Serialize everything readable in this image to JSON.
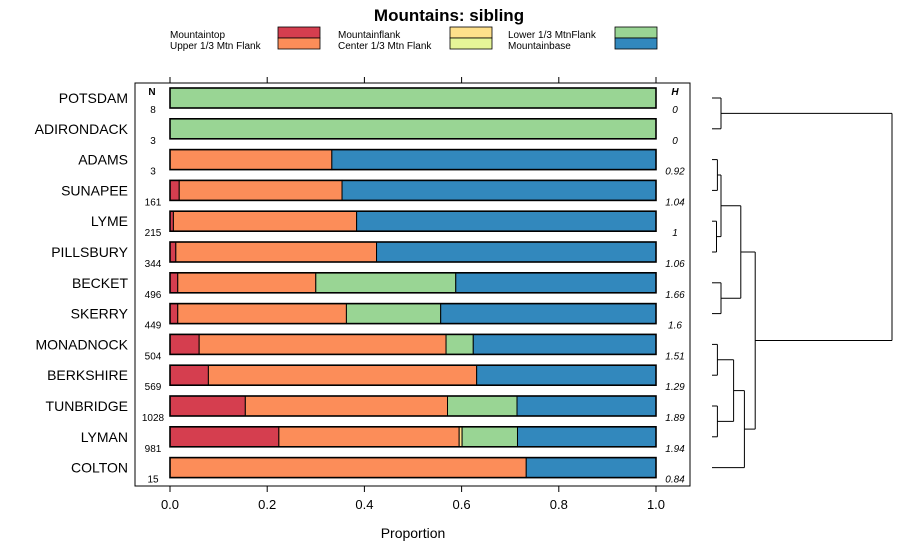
{
  "chart_data": {
    "type": "bar",
    "orientation": "horizontal",
    "stacked": true,
    "title": "Mountains: sibling",
    "xlabel": "Proportion",
    "xlim": [
      0,
      1
    ],
    "xticks": [
      "0.0",
      "0.2",
      "0.4",
      "0.6",
      "0.8",
      "1.0"
    ],
    "n_header": "N",
    "h_header": "H",
    "legend": [
      {
        "name": "Mountaintop",
        "color": "#d53e4f"
      },
      {
        "name": "Upper 1/3 Mtn Flank",
        "color": "#fc8d59"
      },
      {
        "name": "Mountainflank",
        "color": "#fee08b"
      },
      {
        "name": "Center 1/3 Mtn Flank",
        "color": "#e6f598"
      },
      {
        "name": "Lower 1/3 MtnFlank",
        "color": "#99d594"
      },
      {
        "name": "Mountainbase",
        "color": "#3288bd"
      }
    ],
    "categories": [
      "POTSDAM",
      "ADIRONDACK",
      "ADAMS",
      "SUNAPEE",
      "LYME",
      "PILLSBURY",
      "BECKET",
      "SKERRY",
      "MONADNOCK",
      "BERKSHIRE",
      "TUNBRIDGE",
      "LYMAN",
      "COLTON"
    ],
    "n": [
      "8",
      "3",
      "3",
      "161",
      "215",
      "344",
      "496",
      "449",
      "504",
      "569",
      "1028",
      "981",
      "15"
    ],
    "h": [
      "0",
      "0",
      "0.92",
      "1.04",
      "1",
      "1.06",
      "1.66",
      "1.6",
      "1.51",
      "1.29",
      "1.89",
      "1.94",
      "0.84"
    ],
    "series": [
      {
        "name": "Mountaintop",
        "values": [
          0,
          0,
          0,
          0.019,
          0.007,
          0.012,
          0.016,
          0.016,
          0.06,
          0.079,
          0.155,
          0.224,
          0
        ]
      },
      {
        "name": "Upper 1/3 Mtn Flank",
        "values": [
          0,
          0,
          0.333,
          0.335,
          0.377,
          0.413,
          0.284,
          0.347,
          0.508,
          0.552,
          0.416,
          0.371,
          0.733
        ]
      },
      {
        "name": "Mountainflank",
        "values": [
          0,
          0,
          0,
          0,
          0,
          0,
          0,
          0,
          0,
          0,
          0,
          0.006,
          0
        ]
      },
      {
        "name": "Center 1/3 Mtn Flank",
        "values": [
          0,
          0,
          0,
          0,
          0,
          0,
          0,
          0,
          0,
          0,
          0,
          0,
          0
        ]
      },
      {
        "name": "Lower 1/3 MtnFlank",
        "values": [
          1,
          1,
          0,
          0,
          0,
          0,
          0.288,
          0.194,
          0.056,
          0,
          0.143,
          0.114,
          0
        ]
      },
      {
        "name": "Mountainbase",
        "values": [
          0,
          0,
          0.667,
          0.646,
          0.616,
          0.575,
          0.412,
          0.443,
          0.376,
          0.369,
          0.286,
          0.285,
          0.267
        ]
      }
    ],
    "dendrogram": {
      "type": "hierarchical clustering",
      "leaf_order": [
        "POTSDAM",
        "ADIRONDACK",
        "ADAMS",
        "SUNAPEE",
        "LYME",
        "PILLSBURY",
        "BECKET",
        "SKERRY",
        "MONADNOCK",
        "BERKSHIRE",
        "TUNBRIDGE",
        "LYMAN",
        "COLTON"
      ],
      "merges": [
        {
          "a": 0,
          "b": 1,
          "height": 0.05
        },
        {
          "a": 2,
          "b": 3,
          "height": 0.03
        },
        {
          "a": 4,
          "b": 5,
          "height": 0.025
        },
        {
          "a": "c1",
          "b": "c2",
          "height": 0.05
        },
        {
          "a": 6,
          "b": 7,
          "height": 0.05
        },
        {
          "a": "c3",
          "b": "c4",
          "height": 0.16
        },
        {
          "a": 8,
          "b": 9,
          "height": 0.03
        },
        {
          "a": 10,
          "b": 11,
          "height": 0.03
        },
        {
          "a": "c6",
          "b": "c7",
          "height": 0.12
        },
        {
          "a": "c8",
          "b": 12,
          "height": 0.18
        },
        {
          "a": "c5",
          "b": "c9",
          "height": 0.24
        },
        {
          "a": "c0",
          "b": "c10",
          "height": 1.0
        }
      ]
    }
  }
}
